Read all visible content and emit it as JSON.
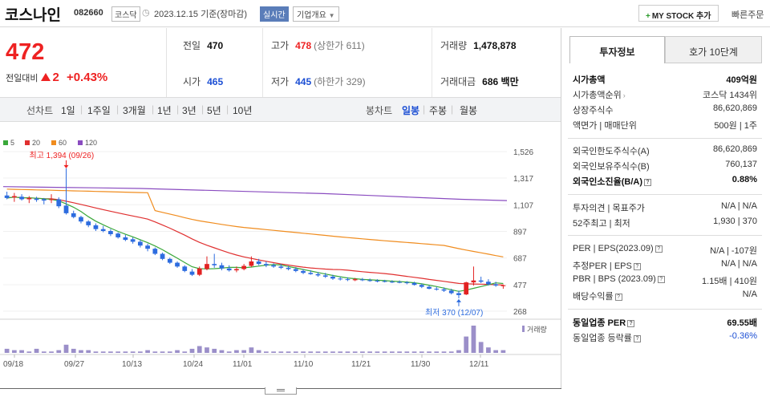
{
  "header": {
    "name": "코스나인",
    "code": "082660",
    "market": "코스닥",
    "date": "2023.12.15 기준(장마감)",
    "realtime": "실시간",
    "corp_info": "기업개요",
    "my_stock": "MY STOCK 추가",
    "quick_order": "빠른주문"
  },
  "summary": {
    "price": "472",
    "change_label": "전일대비",
    "change_value": "2",
    "change_pct": "+0.43%",
    "prev_label": "전일",
    "prev": "470",
    "high_label": "고가",
    "high": "478",
    "upper_limit": "(상한가 611)",
    "volume_label": "거래량",
    "volume": "1,478,878",
    "open_label": "시가",
    "open": "465",
    "low_label": "저가",
    "low": "445",
    "lower_limit": "(하한가 329)",
    "amount_label": "거래대금",
    "amount": "686 백만"
  },
  "period_bar": {
    "line_label": "선차트",
    "periods": [
      "1일",
      "1주일",
      "3개월",
      "1년",
      "3년",
      "5년",
      "10년"
    ],
    "candle_label": "봉차트",
    "candles": [
      "일봉",
      "주봉",
      "월봉"
    ],
    "selected_candle": "일봉"
  },
  "chart_data": {
    "type": "candlestick",
    "legend": [
      "5",
      "20",
      "60",
      "120"
    ],
    "legend_colors": [
      "#3aa83a",
      "#e03030",
      "#f08c1e",
      "#8a4cc0"
    ],
    "y_ticks": [
      1526,
      1317,
      1107,
      897,
      687,
      477,
      268
    ],
    "ylim": [
      268,
      1526
    ],
    "x_labels": [
      "09/18",
      "09/27",
      "10/13",
      "10/24",
      "11/01",
      "11/10",
      "11/21",
      "11/30",
      "12/11"
    ],
    "max_annotation": "최고 1,394 (09/26)",
    "min_annotation": "최저 370 (12/07)",
    "volume_label": "거래량",
    "candles": [
      {
        "o": 1180,
        "h": 1210,
        "l": 1150,
        "c": 1160
      },
      {
        "o": 1165,
        "h": 1200,
        "l": 1130,
        "c": 1175
      },
      {
        "o": 1170,
        "h": 1190,
        "l": 1140,
        "c": 1150
      },
      {
        "o": 1150,
        "h": 1175,
        "l": 1120,
        "c": 1160
      },
      {
        "o": 1155,
        "h": 1170,
        "l": 1130,
        "c": 1145
      },
      {
        "o": 1150,
        "h": 1160,
        "l": 1110,
        "c": 1140
      },
      {
        "o": 1145,
        "h": 1190,
        "l": 1120,
        "c": 1150
      },
      {
        "o": 1150,
        "h": 1165,
        "l": 1080,
        "c": 1095
      },
      {
        "o": 1100,
        "h": 1394,
        "l": 1030,
        "c": 1040
      },
      {
        "o": 1040,
        "h": 1060,
        "l": 1000,
        "c": 1010
      },
      {
        "o": 1010,
        "h": 1020,
        "l": 960,
        "c": 975
      },
      {
        "o": 975,
        "h": 985,
        "l": 930,
        "c": 945
      },
      {
        "o": 945,
        "h": 960,
        "l": 900,
        "c": 915
      },
      {
        "o": 915,
        "h": 940,
        "l": 890,
        "c": 900
      },
      {
        "o": 900,
        "h": 915,
        "l": 860,
        "c": 875
      },
      {
        "o": 880,
        "h": 890,
        "l": 840,
        "c": 850
      },
      {
        "o": 850,
        "h": 870,
        "l": 820,
        "c": 830
      },
      {
        "o": 835,
        "h": 850,
        "l": 800,
        "c": 815
      },
      {
        "o": 815,
        "h": 830,
        "l": 770,
        "c": 785
      },
      {
        "o": 785,
        "h": 800,
        "l": 740,
        "c": 760
      },
      {
        "o": 760,
        "h": 770,
        "l": 710,
        "c": 720
      },
      {
        "o": 720,
        "h": 730,
        "l": 670,
        "c": 680
      },
      {
        "o": 680,
        "h": 690,
        "l": 640,
        "c": 650
      },
      {
        "o": 650,
        "h": 660,
        "l": 610,
        "c": 620
      },
      {
        "o": 620,
        "h": 630,
        "l": 575,
        "c": 585
      },
      {
        "o": 580,
        "h": 600,
        "l": 545,
        "c": 555
      },
      {
        "o": 555,
        "h": 620,
        "l": 545,
        "c": 605
      },
      {
        "o": 600,
        "h": 700,
        "l": 590,
        "c": 640
      },
      {
        "o": 640,
        "h": 720,
        "l": 610,
        "c": 630
      },
      {
        "o": 630,
        "h": 650,
        "l": 590,
        "c": 605
      },
      {
        "o": 605,
        "h": 630,
        "l": 580,
        "c": 590
      },
      {
        "o": 590,
        "h": 620,
        "l": 575,
        "c": 600
      },
      {
        "o": 600,
        "h": 640,
        "l": 590,
        "c": 625
      },
      {
        "o": 625,
        "h": 700,
        "l": 615,
        "c": 660
      },
      {
        "o": 660,
        "h": 680,
        "l": 630,
        "c": 640
      },
      {
        "o": 640,
        "h": 660,
        "l": 615,
        "c": 630
      },
      {
        "o": 630,
        "h": 645,
        "l": 610,
        "c": 620
      },
      {
        "o": 620,
        "h": 640,
        "l": 600,
        "c": 610
      },
      {
        "o": 610,
        "h": 625,
        "l": 590,
        "c": 600
      },
      {
        "o": 600,
        "h": 615,
        "l": 575,
        "c": 585
      },
      {
        "o": 585,
        "h": 600,
        "l": 560,
        "c": 570
      },
      {
        "o": 570,
        "h": 590,
        "l": 555,
        "c": 560
      },
      {
        "o": 560,
        "h": 575,
        "l": 540,
        "c": 550
      },
      {
        "o": 550,
        "h": 570,
        "l": 530,
        "c": 540
      },
      {
        "o": 540,
        "h": 555,
        "l": 515,
        "c": 525
      },
      {
        "o": 525,
        "h": 540,
        "l": 510,
        "c": 520
      },
      {
        "o": 520,
        "h": 535,
        "l": 505,
        "c": 515
      },
      {
        "o": 512,
        "h": 530,
        "l": 505,
        "c": 520
      },
      {
        "o": 518,
        "h": 530,
        "l": 505,
        "c": 512
      },
      {
        "o": 512,
        "h": 525,
        "l": 500,
        "c": 508
      },
      {
        "o": 508,
        "h": 520,
        "l": 495,
        "c": 505
      },
      {
        "o": 505,
        "h": 515,
        "l": 495,
        "c": 500
      },
      {
        "o": 500,
        "h": 512,
        "l": 490,
        "c": 498
      },
      {
        "o": 498,
        "h": 510,
        "l": 488,
        "c": 495
      },
      {
        "o": 495,
        "h": 505,
        "l": 480,
        "c": 490
      },
      {
        "o": 490,
        "h": 500,
        "l": 470,
        "c": 475
      },
      {
        "o": 475,
        "h": 485,
        "l": 450,
        "c": 460
      },
      {
        "o": 460,
        "h": 470,
        "l": 440,
        "c": 445
      },
      {
        "o": 445,
        "h": 460,
        "l": 430,
        "c": 440
      },
      {
        "o": 440,
        "h": 455,
        "l": 420,
        "c": 430
      },
      {
        "o": 430,
        "h": 445,
        "l": 400,
        "c": 410
      },
      {
        "o": 410,
        "h": 430,
        "l": 370,
        "c": 395
      },
      {
        "o": 400,
        "h": 500,
        "l": 395,
        "c": 495
      },
      {
        "o": 495,
        "h": 620,
        "l": 470,
        "c": 510
      },
      {
        "o": 510,
        "h": 540,
        "l": 490,
        "c": 500
      },
      {
        "o": 500,
        "h": 520,
        "l": 470,
        "c": 480
      },
      {
        "o": 480,
        "h": 500,
        "l": 460,
        "c": 470
      },
      {
        "o": 465,
        "h": 478,
        "l": 445,
        "c": 472
      }
    ],
    "ma120": [
      1250,
      1245,
      1240,
      1235,
      1225,
      1215,
      1205,
      1195,
      1180,
      1165,
      1150,
      1140
    ],
    "volumes": [
      3,
      2,
      2,
      1,
      3,
      1,
      1,
      2,
      6,
      3,
      2,
      2,
      1,
      1,
      1,
      1,
      1,
      1,
      1,
      2,
      1,
      1,
      1,
      2,
      1,
      3,
      5,
      4,
      3,
      2,
      1,
      2,
      2,
      4,
      2,
      1,
      1,
      1,
      1,
      1,
      1,
      1,
      1,
      1,
      1,
      1,
      1,
      1,
      1,
      1,
      1,
      1,
      1,
      1,
      1,
      1,
      1,
      1,
      1,
      1,
      1,
      2,
      12,
      20,
      8,
      4,
      2,
      2
    ]
  },
  "panel": {
    "tab1": "투자정보",
    "tab2": "호가 10단계",
    "rows1": [
      {
        "k": "시가총액",
        "v": "409억원"
      },
      {
        "k": "시가총액순위",
        "v": "코스닥 1434위"
      },
      {
        "k": "상장주식수",
        "v": "86,620,869"
      },
      {
        "k": "액면가 | 매매단위",
        "v": "500원 | 1주"
      }
    ],
    "rows2": [
      {
        "k": "외국인한도주식수(A)",
        "v": "86,620,869"
      },
      {
        "k": "외국인보유주식수(B)",
        "v": "760,137"
      },
      {
        "k": "외국인소진율(B/A)",
        "v": "0.88%"
      }
    ],
    "rows3": [
      {
        "k": "투자의견 | 목표주가",
        "v": "N/A | N/A"
      },
      {
        "k": "52주최고 | 최저",
        "v": "1,930 | 370"
      }
    ],
    "rows4": [
      {
        "k": "PER | EPS(2023.09)",
        "v": "N/A | -107원"
      },
      {
        "k": "추정PER | EPS",
        "v": "N/A | N/A"
      },
      {
        "k": "PBR | BPS (2023.09)",
        "v": "1.15배 | 410원"
      },
      {
        "k": "배당수익률",
        "v": "N/A"
      }
    ],
    "rows5": [
      {
        "k": "동일업종 PER",
        "v": "69.55배"
      },
      {
        "k": "동일업종 등락률",
        "v": "-0.36%"
      }
    ]
  }
}
